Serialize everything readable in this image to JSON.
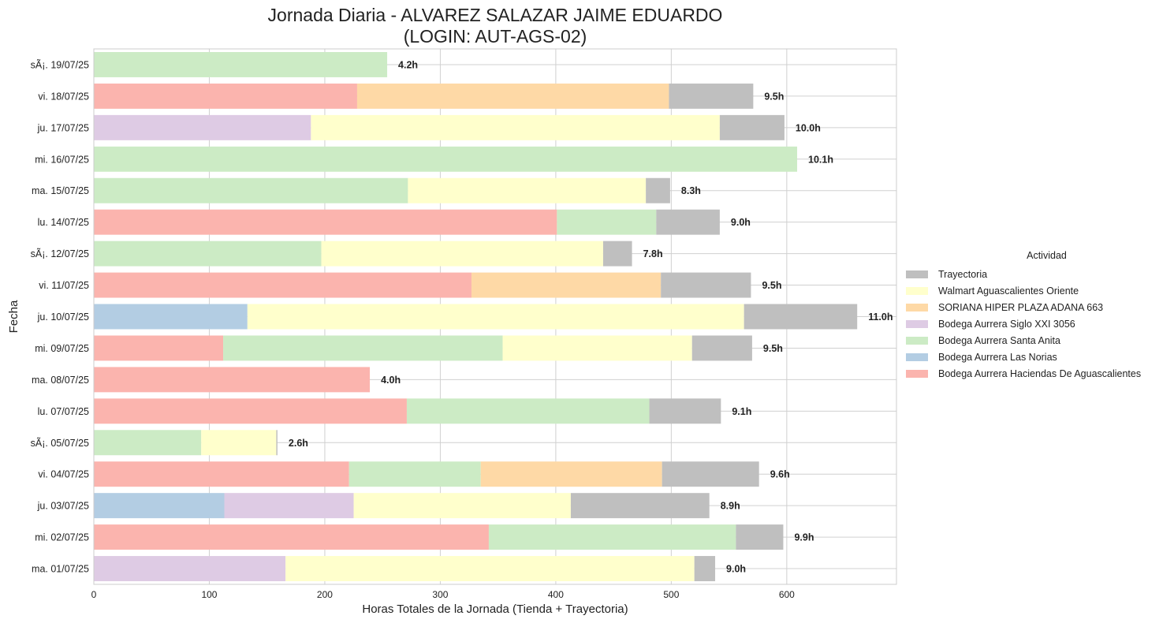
{
  "chart_data": {
    "type": "bar",
    "orientation": "horizontal",
    "stacked": true,
    "title": "Jornada Diaria - ALVAREZ SALAZAR JAIME EDUARDO",
    "subtitle": "(LOGIN: AUT-AGS-02)",
    "xlabel": "Horas Totales de la Jornada (Tienda + Trayectoria)",
    "ylabel": "Fecha",
    "xlim": [
      0,
      695
    ],
    "xticks": [
      0,
      100,
      200,
      300,
      400,
      500,
      600
    ],
    "grid": true,
    "legend": {
      "title": "Actividad",
      "position": "right"
    },
    "categories": [
      "sÃ¡. 19/07/25",
      "vi. 18/07/25",
      "ju. 17/07/25",
      "mi. 16/07/25",
      "ma. 15/07/25",
      "lu. 14/07/25",
      "sÃ¡. 12/07/25",
      "vi. 11/07/25",
      "ju. 10/07/25",
      "mi. 09/07/25",
      "ma. 08/07/25",
      "lu. 07/07/25",
      "sÃ¡. 05/07/25",
      "vi. 04/07/25",
      "ju. 03/07/25",
      "mi. 02/07/25",
      "ma. 01/07/25"
    ],
    "totals_labels": [
      "4.2h",
      "9.5h",
      "10.0h",
      "10.1h",
      "8.3h",
      "9.0h",
      "7.8h",
      "9.5h",
      "11.0h",
      "9.5h",
      "4.0h",
      "9.1h",
      "2.6h",
      "9.6h",
      "8.9h",
      "9.9h",
      "9.0h"
    ],
    "series": [
      {
        "name": "Bodega Aurrera Haciendas De Aguascalientes",
        "color": "#fbb4ae",
        "values": [
          0,
          228,
          0,
          0,
          0,
          401,
          0,
          327,
          0,
          112,
          239,
          271,
          0,
          221,
          0,
          342,
          0
        ]
      },
      {
        "name": "Bodega Aurrera Las Norias",
        "color": "#b3cde3",
        "values": [
          0,
          0,
          0,
          0,
          0,
          0,
          0,
          0,
          133,
          0,
          0,
          0,
          0,
          0,
          113,
          0,
          0
        ]
      },
      {
        "name": "Bodega Aurrera Santa Anita",
        "color": "#ccebc5",
        "values": [
          254,
          0,
          0,
          609,
          272,
          86,
          197,
          0,
          0,
          242,
          0,
          210,
          93,
          114,
          0,
          214,
          0
        ]
      },
      {
        "name": "Bodega Aurrera Siglo XXI 3056",
        "color": "#decbe4",
        "values": [
          0,
          0,
          188,
          0,
          0,
          0,
          0,
          0,
          0,
          0,
          0,
          0,
          0,
          0,
          112,
          0,
          166
        ]
      },
      {
        "name": "SORIANA HIPER PLAZA ADANA 663",
        "color": "#fed9a6",
        "values": [
          0,
          270,
          0,
          0,
          0,
          0,
          0,
          164,
          0,
          0,
          0,
          0,
          0,
          157,
          0,
          0,
          0
        ]
      },
      {
        "name": "Walmart Aguascalientes Oriente",
        "color": "#ffffcc",
        "values": [
          0,
          0,
          354,
          0,
          206,
          0,
          244,
          0,
          430,
          164,
          0,
          0,
          65,
          0,
          188,
          0,
          354
        ]
      },
      {
        "name": "Trayectoria",
        "color": "#bfbfbf",
        "values": [
          0,
          73,
          56,
          0,
          21,
          55,
          25,
          78,
          98,
          52,
          0,
          62,
          1,
          84,
          120,
          41,
          18
        ]
      }
    ]
  }
}
